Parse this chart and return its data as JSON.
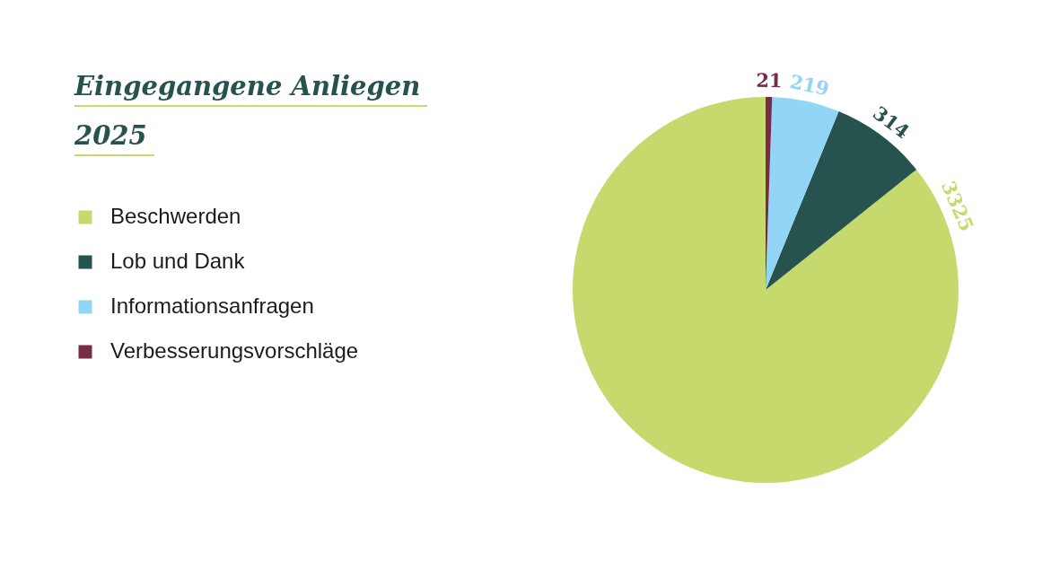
{
  "chart_data": {
    "type": "pie",
    "title": "Eingegangene Anliegen",
    "subtitle": "2025",
    "categories": [
      "Beschwerden",
      "Lob und Dank",
      "Informationsanfragen",
      "Verbesserungsvorschläge"
    ],
    "values": [
      3325,
      314,
      219,
      21
    ],
    "colors": [
      "#c5d96d",
      "#27534f",
      "#92d5f6",
      "#772b47"
    ],
    "data_labels": true,
    "legend": "left"
  }
}
